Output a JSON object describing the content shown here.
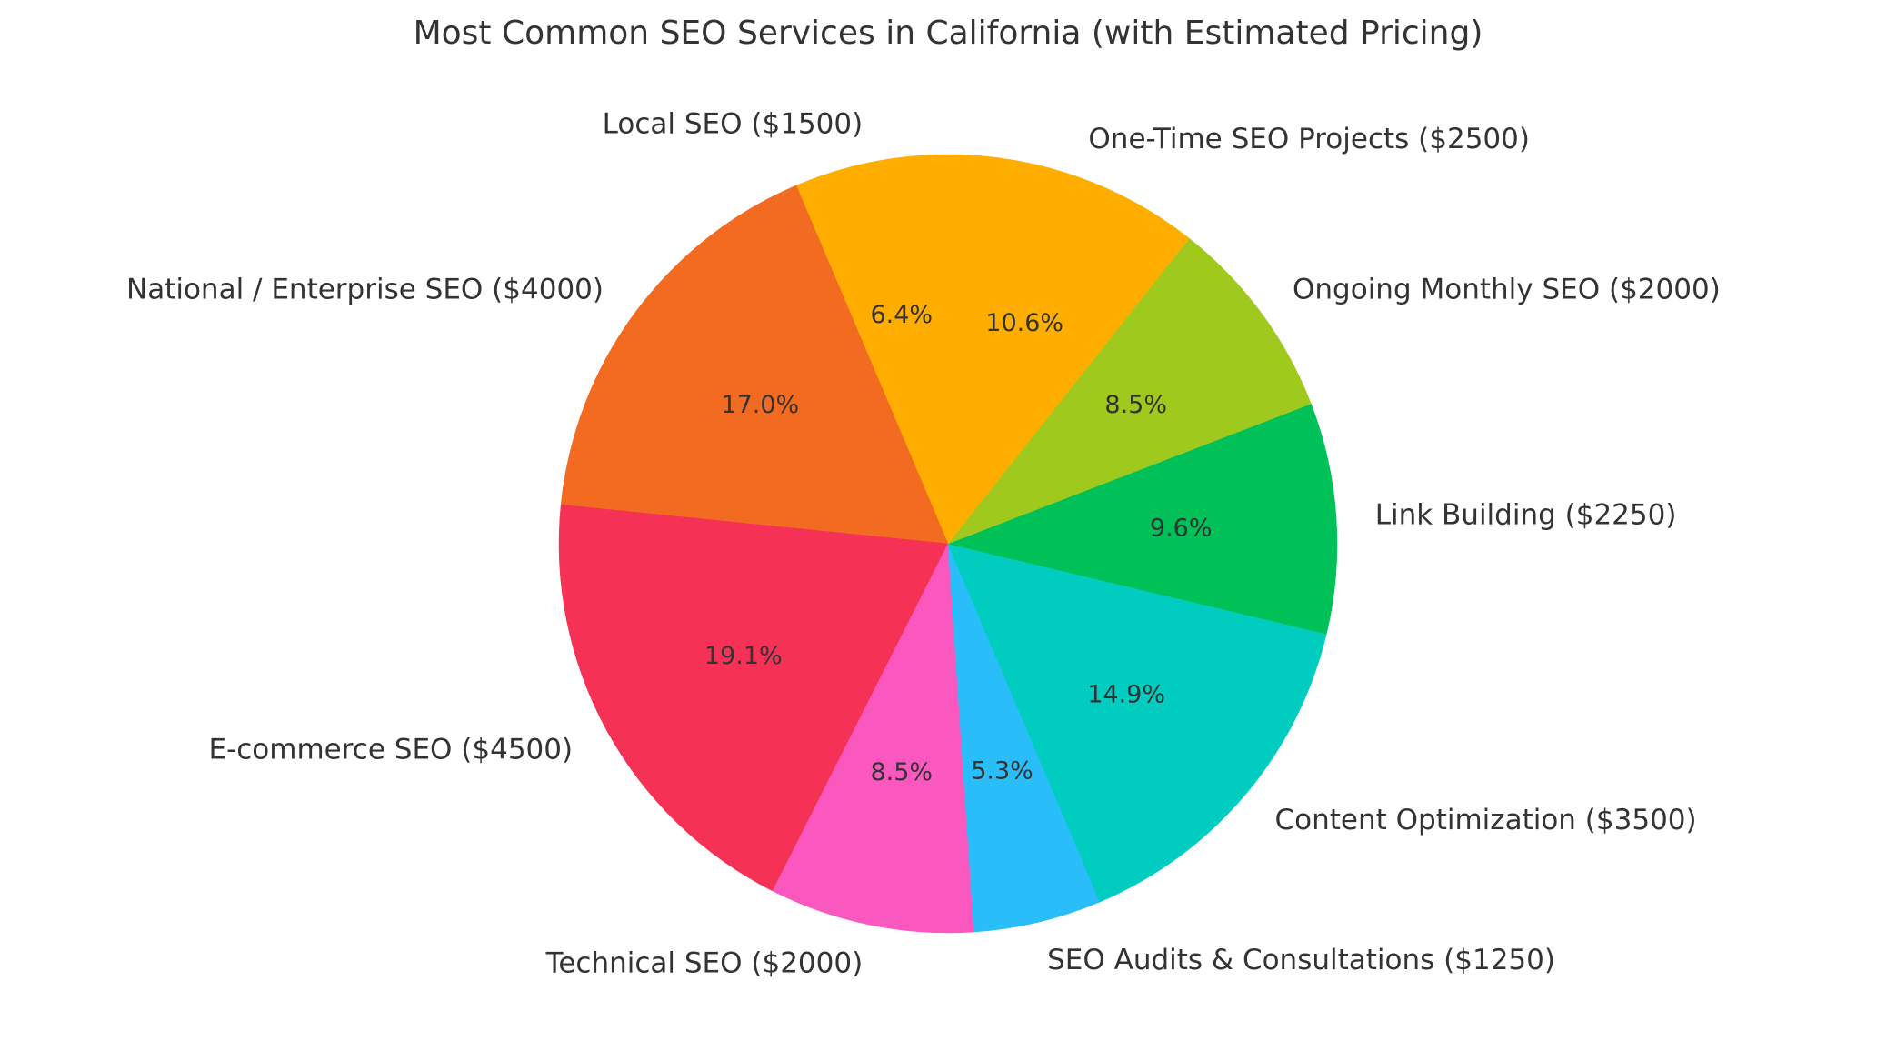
{
  "chart_data": {
    "type": "pie",
    "title": "Most Common SEO Services in California (with Estimated Pricing)",
    "start_angle_deg": 90,
    "direction": "counterclockwise",
    "slices": [
      {
        "label": "Local SEO ($1500)",
        "service": "Local SEO",
        "price": 1500,
        "pct_label": "6.4%",
        "color": "#FFAE00"
      },
      {
        "label": "National / Enterprise SEO ($4000)",
        "service": "National / Enterprise SEO",
        "price": 4000,
        "pct_label": "17.0%",
        "color": "#F26B21"
      },
      {
        "label": "E-commerce SEO ($4500)",
        "service": "E-commerce SEO",
        "price": 4500,
        "pct_label": "19.1%",
        "color": "#F53155"
      },
      {
        "label": "Technical SEO ($2000)",
        "service": "Technical SEO",
        "price": 2000,
        "pct_label": "8.5%",
        "color": "#FA57BF"
      },
      {
        "label": "SEO Audits & Consultations ($1250)",
        "service": "SEO Audits & Consultations",
        "price": 1250,
        "pct_label": "5.3%",
        "color": "#29BDFA"
      },
      {
        "label": "Content Optimization ($3500)",
        "service": "Content Optimization",
        "price": 3500,
        "pct_label": "14.9%",
        "color": "#00CCC0"
      },
      {
        "label": "Link Building ($2250)",
        "service": "Link Building",
        "price": 2250,
        "pct_label": "9.6%",
        "color": "#00C157"
      },
      {
        "label": "Ongoing Monthly SEO ($2000)",
        "service": "Ongoing Monthly SEO",
        "price": 2000,
        "pct_label": "8.5%",
        "color": "#9FC91D"
      },
      {
        "label": "One-Time SEO Projects ($2500)",
        "service": "One-Time SEO Projects",
        "price": 2500,
        "pct_label": "10.6%",
        "color": "#FFAE00"
      }
    ]
  }
}
